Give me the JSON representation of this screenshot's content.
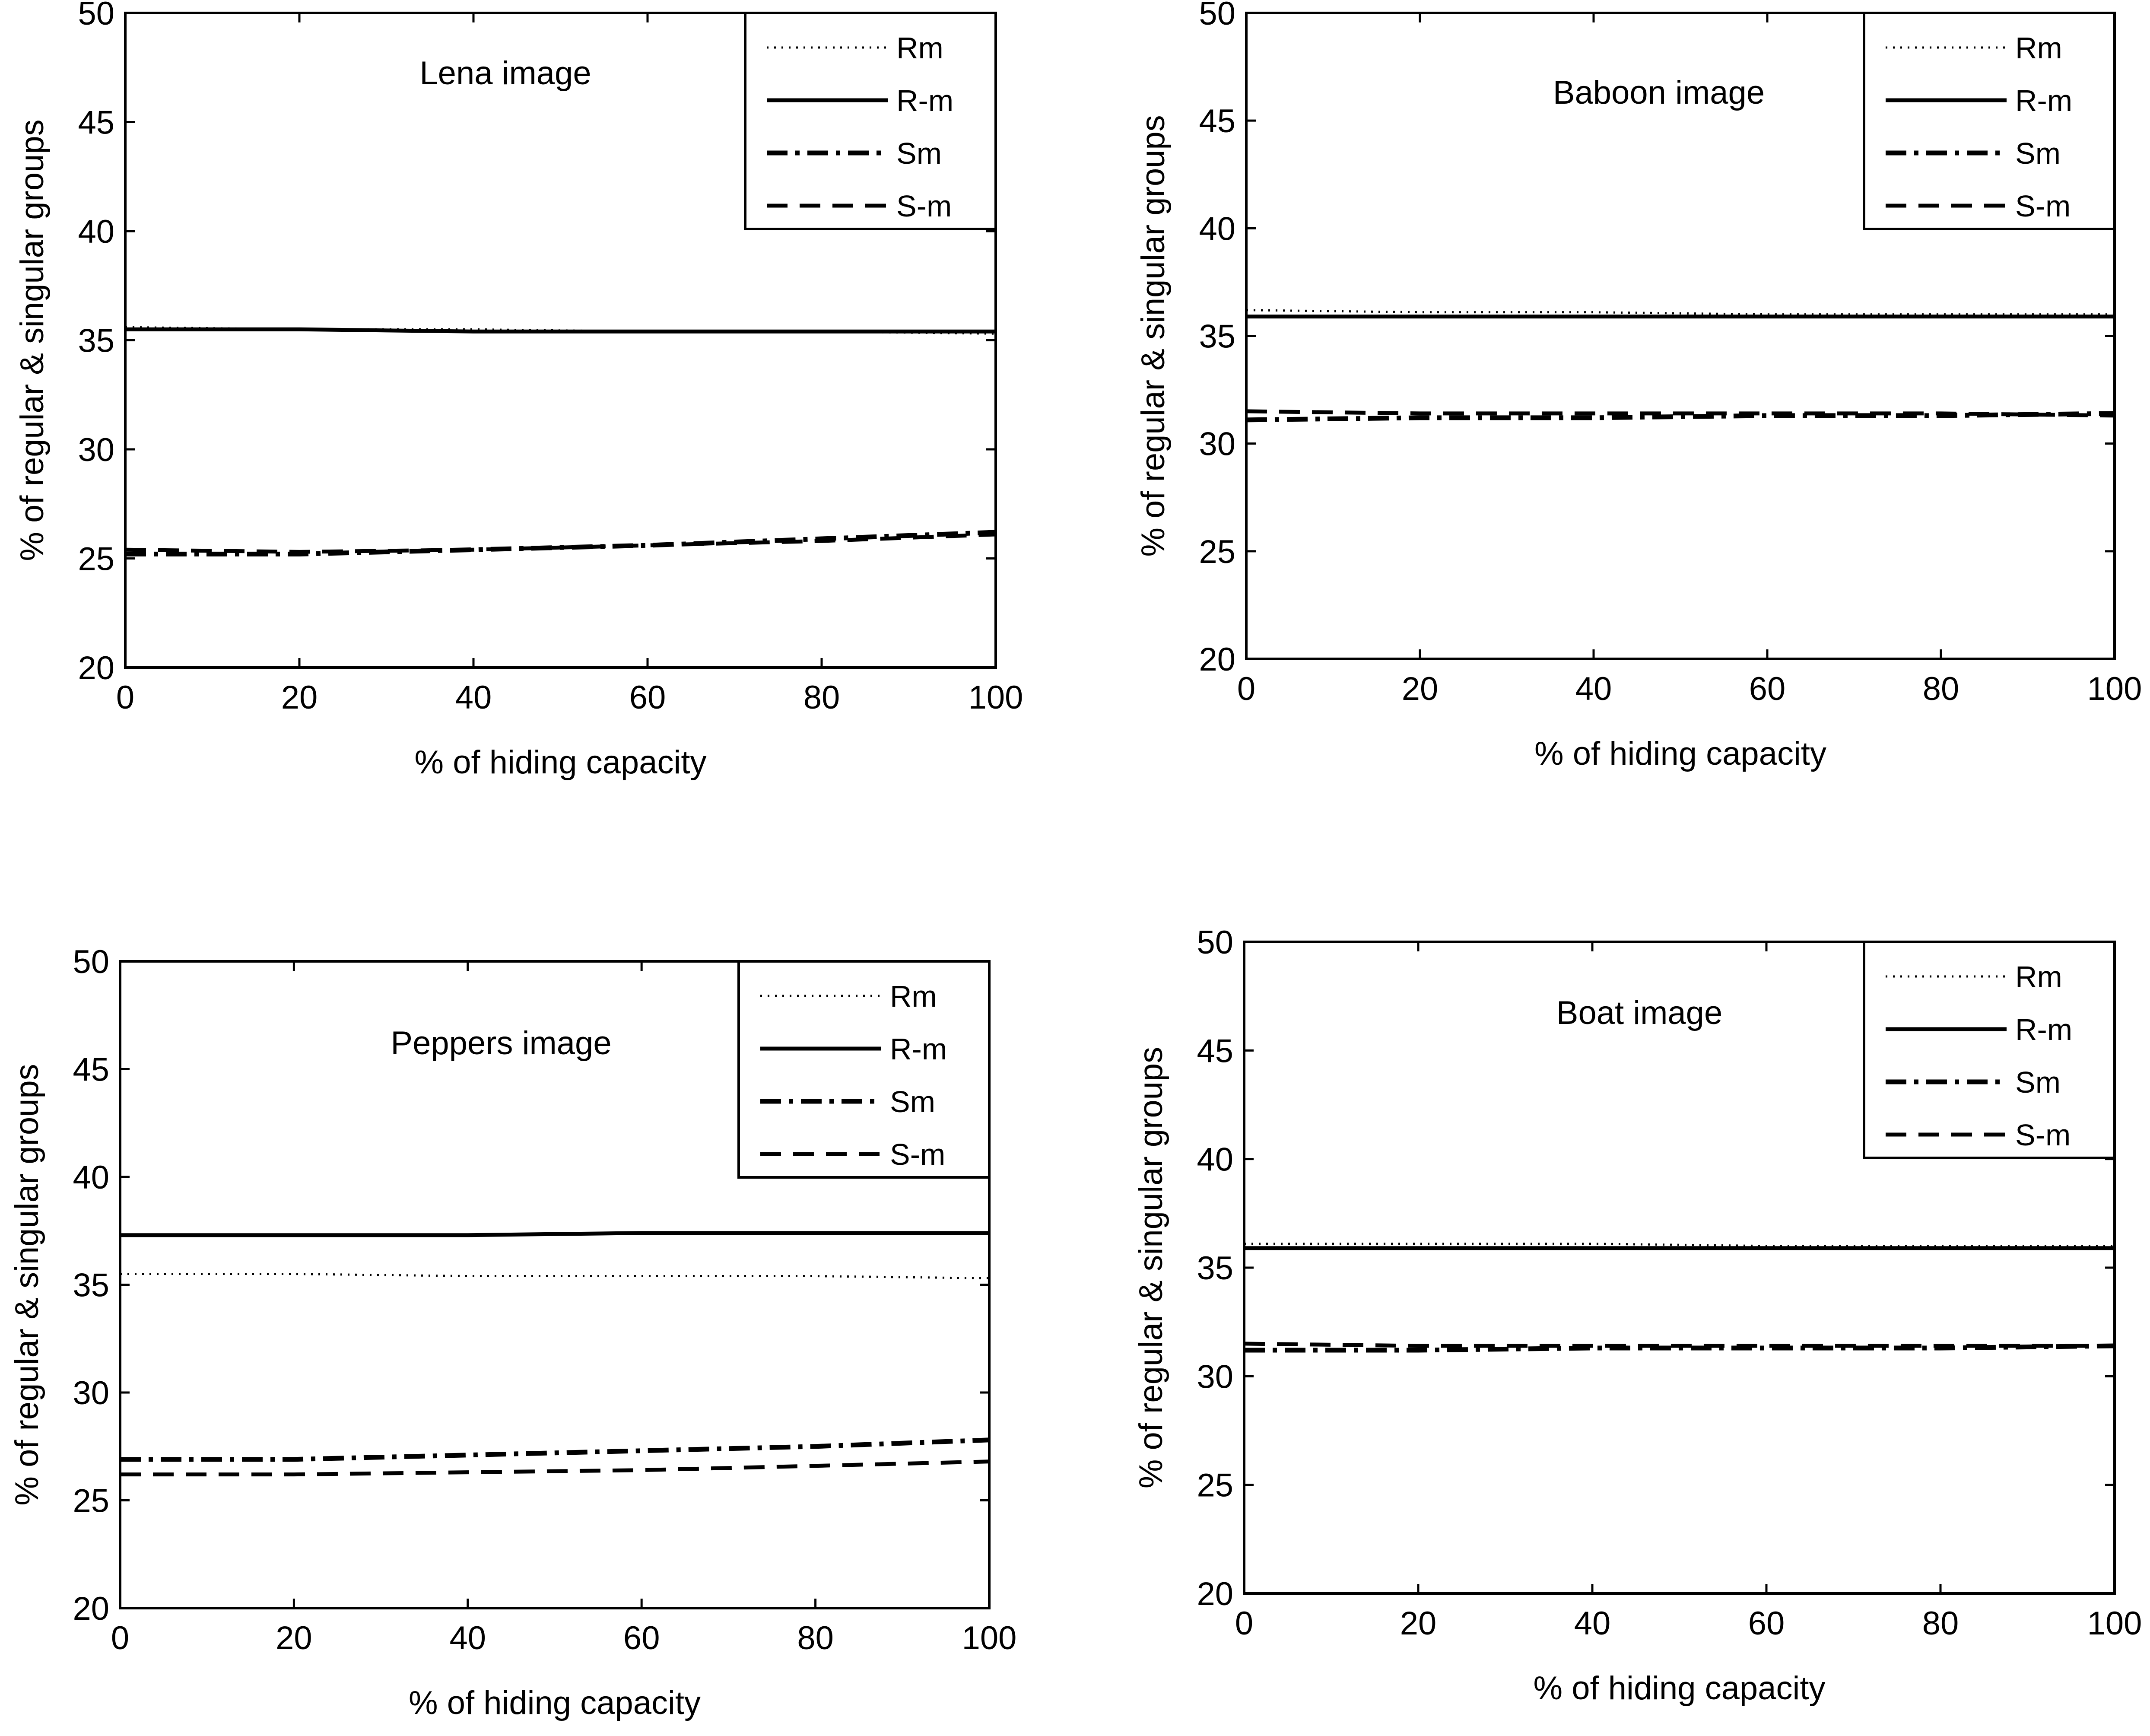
{
  "chart_data": [
    {
      "type": "line",
      "title": "Lena image",
      "xlabel": "% of hiding capacity",
      "ylabel": "% of regular & singular groups",
      "xlim": [
        0,
        100
      ],
      "ylim": [
        20,
        50
      ],
      "xticks": [
        0,
        20,
        40,
        60,
        80,
        100
      ],
      "yticks": [
        20,
        25,
        30,
        35,
        40,
        45,
        50
      ],
      "legend_position": "top-right",
      "x": [
        0,
        20,
        40,
        60,
        80,
        100
      ],
      "series": [
        {
          "name": "Rm",
          "style": "dotted",
          "values": [
            35.6,
            35.5,
            35.5,
            35.4,
            35.4,
            35.3
          ]
        },
        {
          "name": "R-m",
          "style": "solid",
          "values": [
            35.5,
            35.5,
            35.4,
            35.4,
            35.4,
            35.4
          ]
        },
        {
          "name": "Sm",
          "style": "dashdot",
          "values": [
            25.2,
            25.2,
            25.4,
            25.6,
            25.9,
            26.2
          ]
        },
        {
          "name": "S-m",
          "style": "dashed",
          "values": [
            25.4,
            25.3,
            25.4,
            25.6,
            25.8,
            26.1
          ]
        }
      ]
    },
    {
      "type": "line",
      "title": "Baboon image",
      "xlabel": "% of hiding capacity",
      "ylabel": "% of regular & singular groups",
      "xlim": [
        0,
        100
      ],
      "ylim": [
        20,
        50
      ],
      "xticks": [
        0,
        20,
        40,
        60,
        80,
        100
      ],
      "yticks": [
        20,
        25,
        30,
        35,
        40,
        45,
        50
      ],
      "legend_position": "top-right",
      "x": [
        0,
        20,
        40,
        60,
        80,
        100
      ],
      "series": [
        {
          "name": "Rm",
          "style": "dotted",
          "values": [
            36.2,
            36.1,
            36.1,
            36.0,
            36.0,
            36.0
          ]
        },
        {
          "name": "R-m",
          "style": "solid",
          "values": [
            35.9,
            35.9,
            35.9,
            35.9,
            35.9,
            35.9
          ]
        },
        {
          "name": "Sm",
          "style": "dashdot",
          "values": [
            31.1,
            31.2,
            31.2,
            31.3,
            31.3,
            31.4
          ]
        },
        {
          "name": "S-m",
          "style": "dashed",
          "values": [
            31.5,
            31.4,
            31.4,
            31.4,
            31.4,
            31.3
          ]
        }
      ]
    },
    {
      "type": "line",
      "title": "Peppers image",
      "xlabel": "% of hiding capacity",
      "ylabel": "% of regular & singular groups",
      "xlim": [
        0,
        100
      ],
      "ylim": [
        20,
        50
      ],
      "xticks": [
        0,
        20,
        40,
        60,
        80,
        100
      ],
      "yticks": [
        20,
        25,
        30,
        35,
        40,
        45,
        50
      ],
      "legend_position": "top-right",
      "x": [
        0,
        20,
        40,
        60,
        80,
        100
      ],
      "series": [
        {
          "name": "Rm",
          "style": "dotted",
          "values": [
            35.5,
            35.5,
            35.4,
            35.4,
            35.4,
            35.3
          ]
        },
        {
          "name": "R-m",
          "style": "solid",
          "values": [
            37.3,
            37.3,
            37.3,
            37.4,
            37.4,
            37.4
          ]
        },
        {
          "name": "Sm",
          "style": "dashdot",
          "values": [
            26.9,
            26.9,
            27.1,
            27.3,
            27.5,
            27.8
          ]
        },
        {
          "name": "S-m",
          "style": "dashed",
          "values": [
            26.2,
            26.2,
            26.3,
            26.4,
            26.6,
            26.8
          ]
        }
      ]
    },
    {
      "type": "line",
      "title": "Boat image",
      "xlabel": "% of hiding capacity",
      "ylabel": "% of regular & singular groups",
      "xlim": [
        0,
        100
      ],
      "ylim": [
        20,
        50
      ],
      "xticks": [
        0,
        20,
        40,
        60,
        80,
        100
      ],
      "yticks": [
        20,
        25,
        30,
        35,
        40,
        45,
        50
      ],
      "legend_position": "top-right",
      "x": [
        0,
        20,
        40,
        60,
        80,
        100
      ],
      "series": [
        {
          "name": "Rm",
          "style": "dotted",
          "values": [
            36.1,
            36.1,
            36.1,
            36.0,
            36.0,
            36.0
          ]
        },
        {
          "name": "R-m",
          "style": "solid",
          "values": [
            35.9,
            35.9,
            35.9,
            35.9,
            35.9,
            35.9
          ]
        },
        {
          "name": "Sm",
          "style": "dashdot",
          "values": [
            31.2,
            31.2,
            31.3,
            31.3,
            31.3,
            31.4
          ]
        },
        {
          "name": "S-m",
          "style": "dashed",
          "values": [
            31.5,
            31.4,
            31.4,
            31.4,
            31.4,
            31.4
          ]
        }
      ]
    }
  ]
}
